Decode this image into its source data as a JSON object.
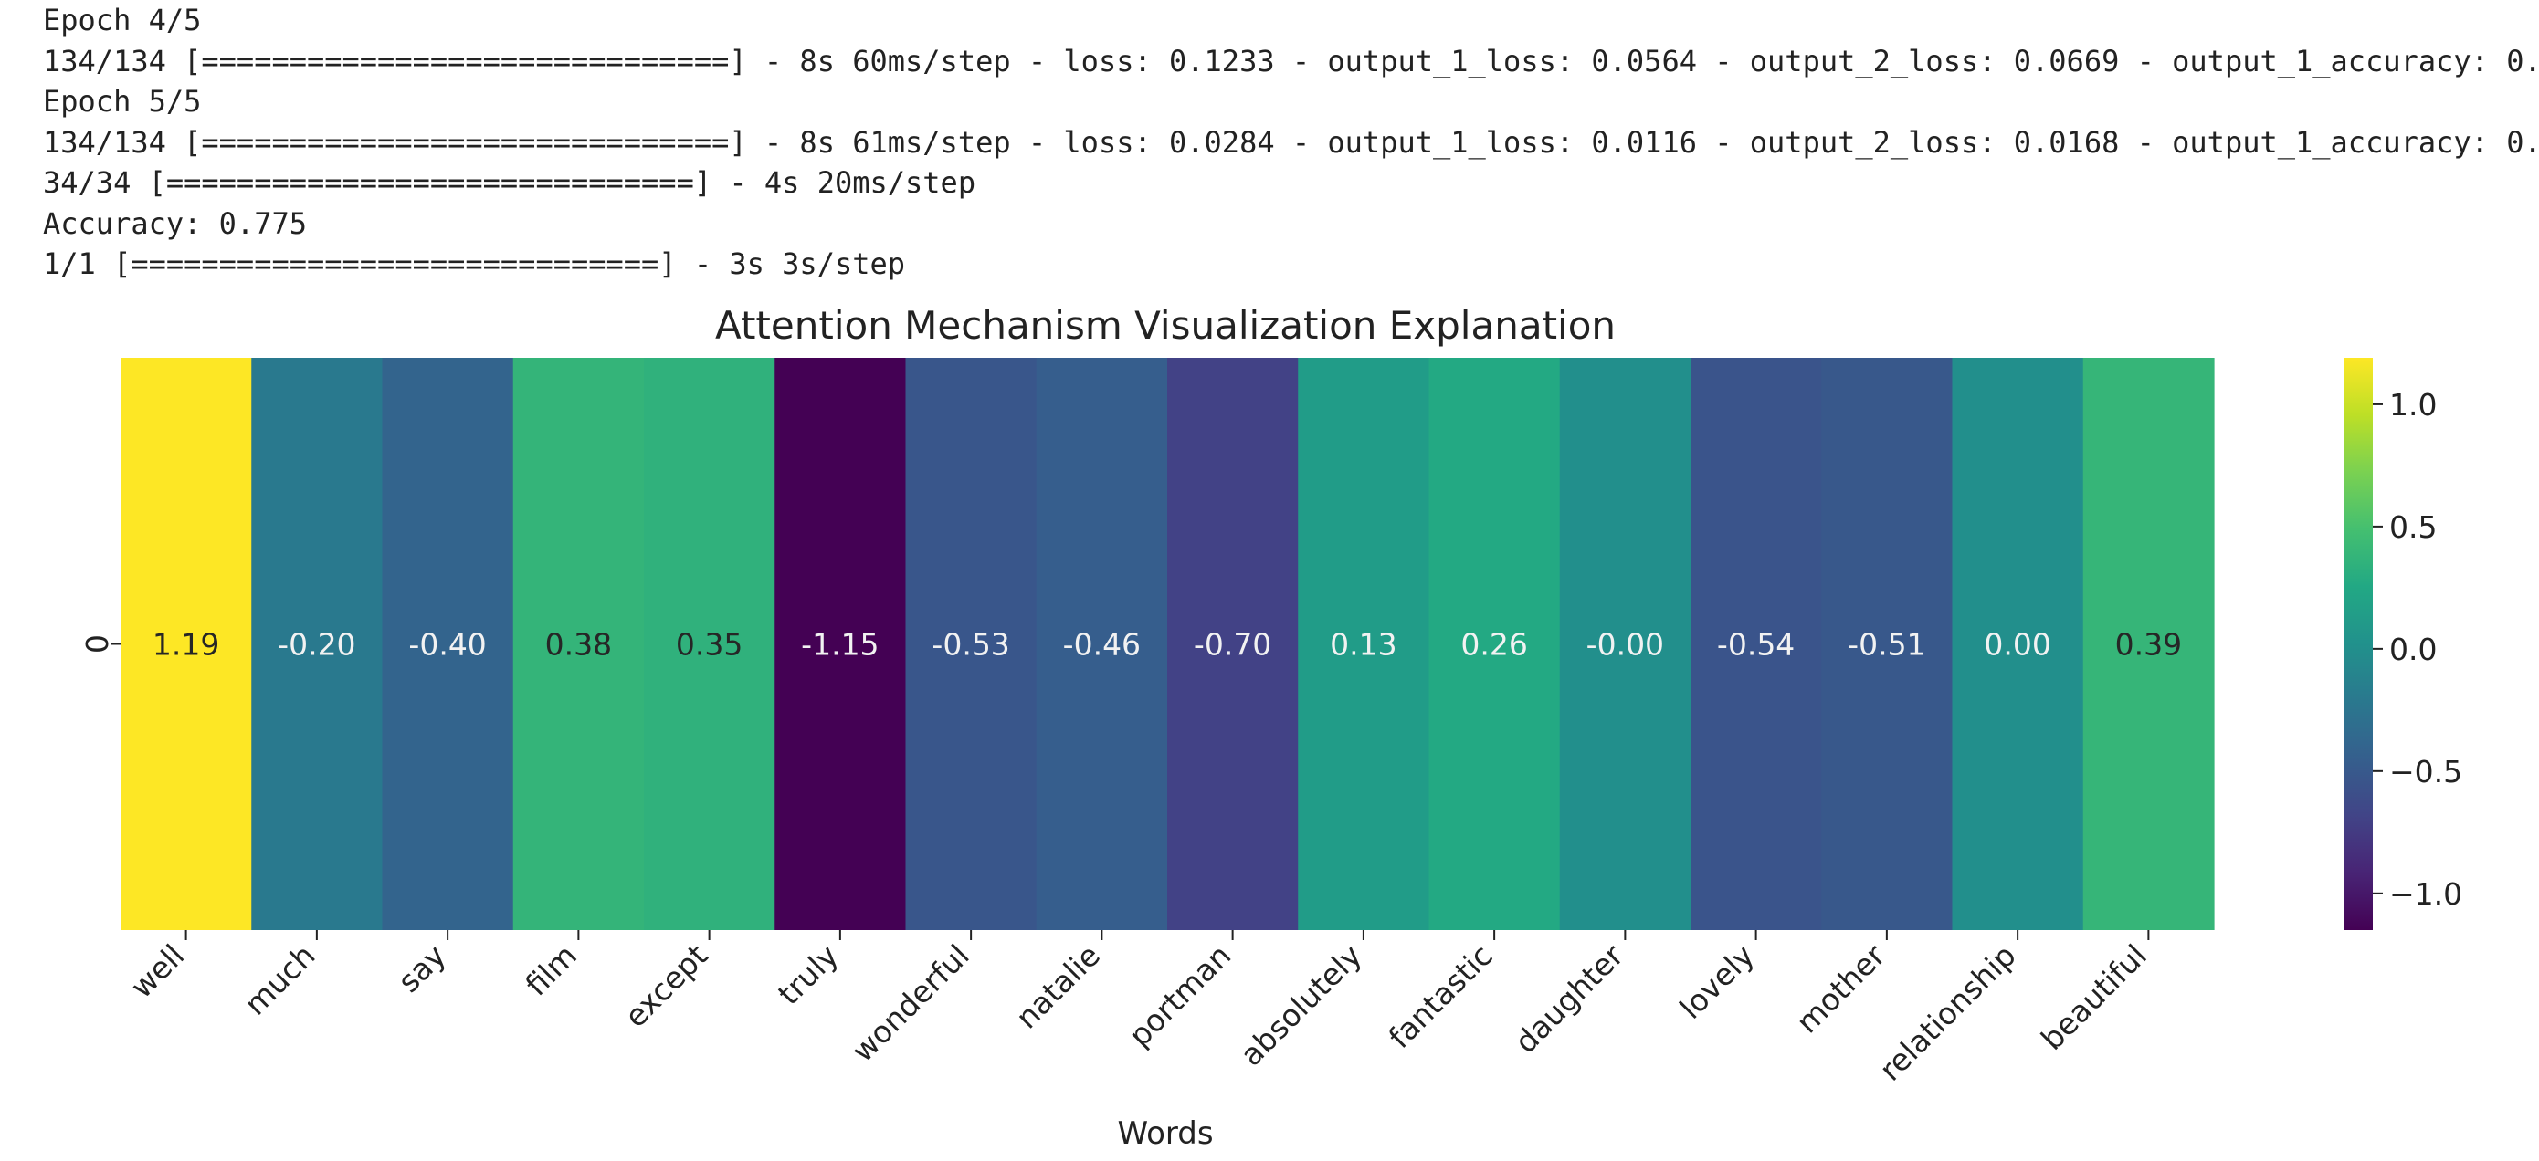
{
  "console": {
    "lines": [
      "Epoch 4/5",
      "134/134 [==============================] - 8s 60ms/step - loss: 0.1233 - output_1_loss: 0.0564 - output_2_loss: 0.0669 - output_1_accuracy: 0.",
      "Epoch 5/5",
      "134/134 [==============================] - 8s 61ms/step - loss: 0.0284 - output_1_loss: 0.0116 - output_2_loss: 0.0168 - output_1_accuracy: 0.",
      "34/34 [==============================] - 4s 20ms/step",
      "Accuracy: 0.775",
      "1/1 [==============================] - 3s 3s/step"
    ]
  },
  "chart_data": {
    "type": "heatmap",
    "title": "Attention Mechanism Visualization Explanation",
    "xlabel": "Words",
    "ylabel": "",
    "row_labels": [
      "0"
    ],
    "categories": [
      "well",
      "much",
      "say",
      "film",
      "except",
      "truly",
      "wonderful",
      "natalie",
      "portman",
      "absolutely",
      "fantastic",
      "daughter",
      "lovely",
      "mother",
      "relationship",
      "beautiful"
    ],
    "values": [
      1.19,
      -0.2,
      -0.4,
      0.38,
      0.35,
      -1.15,
      -0.53,
      -0.46,
      -0.7,
      0.13,
      0.26,
      -0.0,
      -0.54,
      -0.51,
      0.0,
      0.39
    ],
    "value_labels": [
      "1.19",
      "-0.20",
      "-0.40",
      "0.38",
      "0.35",
      "-1.15",
      "-0.53",
      "-0.46",
      "-0.70",
      "0.13",
      "0.26",
      "-0.00",
      "-0.54",
      "-0.51",
      "0.00",
      "0.39"
    ],
    "colormap": "viridis",
    "vmin": -1.15,
    "vmax": 1.19,
    "colorbar": {
      "ticks": [
        1.0,
        0.5,
        0.0,
        -0.5,
        -1.0
      ],
      "tick_labels": [
        "1.0",
        "0.5",
        "0.0",
        "−0.5",
        "−1.0"
      ]
    }
  }
}
